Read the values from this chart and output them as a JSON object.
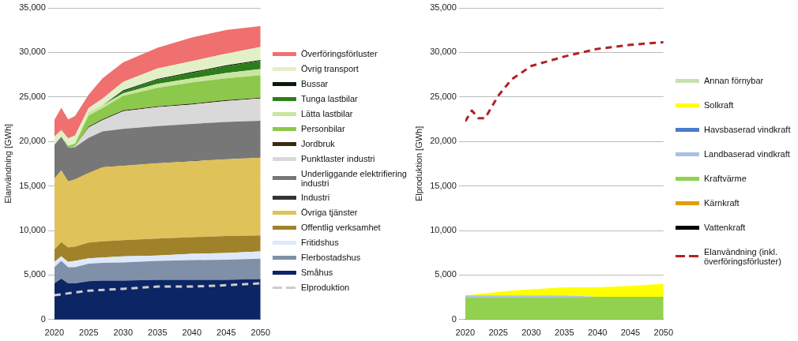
{
  "chart_data": [
    {
      "type": "area",
      "stacked": true,
      "ylabel": "Elanvändning [GWh]",
      "x": [
        2020,
        2021,
        2022,
        2023,
        2025,
        2027,
        2030,
        2035,
        2040,
        2045,
        2050
      ],
      "xlim": [
        2020,
        2050
      ],
      "xticks": [
        2020,
        2025,
        2030,
        2035,
        2040,
        2045,
        2050
      ],
      "ylim": [
        0,
        35000
      ],
      "yticks": [
        {
          "value": 0,
          "label": "0"
        },
        {
          "value": 5000,
          "label": "5,000"
        },
        {
          "value": 10000,
          "label": "10,000"
        },
        {
          "value": 15000,
          "label": "15,000"
        },
        {
          "value": 20000,
          "label": "20,000"
        },
        {
          "value": 25000,
          "label": "25,000"
        },
        {
          "value": 30000,
          "label": "30,000"
        },
        {
          "value": 35000,
          "label": "35,000"
        }
      ],
      "grid": "y",
      "legend": "right",
      "series": [
        {
          "name": "Småhus",
          "color": "#0b2565",
          "values": [
            4060,
            4600,
            4060,
            4060,
            4300,
            4360,
            4360,
            4450,
            4450,
            4450,
            4550
          ]
        },
        {
          "name": "Flerbostadshus",
          "color": "#8090a8",
          "values": [
            1820,
            1980,
            1820,
            1820,
            1970,
            2000,
            2060,
            2130,
            2220,
            2280,
            2270
          ]
        },
        {
          "name": "Fritidshus",
          "color": "#dde9fb",
          "values": [
            600,
            510,
            600,
            700,
            610,
            610,
            670,
            600,
            720,
            750,
            820
          ]
        },
        {
          "name": "Offentlig verksamhet",
          "color": "#a0822a",
          "values": [
            1400,
            1610,
            1610,
            1600,
            1760,
            1820,
            1820,
            1910,
            1850,
            1910,
            1810
          ]
        },
        {
          "name": "Övriga tjänster",
          "color": "#e0c25a",
          "values": [
            7940,
            8030,
            7430,
            7550,
            7840,
            8330,
            8360,
            8460,
            8550,
            8610,
            8730
          ]
        },
        {
          "name": "Industri",
          "color": "#333333",
          "values": [
            50,
            50,
            50,
            50,
            50,
            50,
            50,
            50,
            50,
            50,
            50
          ]
        },
        {
          "name": "Underliggande elektrifiering industri",
          "color": "#777777",
          "values": [
            3740,
            3740,
            3730,
            3580,
            3890,
            3950,
            4100,
            4130,
            4130,
            4130,
            4100
          ]
        },
        {
          "name": "Punktlaster industri",
          "color": "#d9d9d9",
          "values": [
            0,
            0,
            0,
            90,
            1160,
            1270,
            1970,
            2120,
            2180,
            2370,
            2490
          ]
        },
        {
          "name": "Jordbruk",
          "color": "#3a2a10",
          "values": [
            0,
            0,
            0,
            0,
            100,
            100,
            100,
            100,
            100,
            100,
            100
          ]
        },
        {
          "name": "Personbilar",
          "color": "#8cc84b",
          "values": [
            0,
            0,
            220,
            310,
            1240,
            1260,
            1620,
            2070,
            2380,
            2430,
            2520
          ]
        },
        {
          "name": "Lätta lastbilar",
          "color": "#c8e6a0",
          "values": [
            0,
            0,
            0,
            0,
            390,
            300,
            300,
            450,
            450,
            610,
            700
          ]
        },
        {
          "name": "Tunga lastbilar",
          "color": "#2e7d1a",
          "values": [
            0,
            0,
            0,
            0,
            0,
            0,
            220,
            460,
            610,
            750,
            910
          ]
        },
        {
          "name": "Bussar",
          "color": "#0a1a0a",
          "values": [
            0,
            0,
            0,
            0,
            0,
            0,
            100,
            100,
            100,
            100,
            100
          ]
        },
        {
          "name": "Övrig transport",
          "color": "#e2f0c8",
          "values": [
            910,
            750,
            840,
            910,
            460,
            760,
            950,
            1160,
            1220,
            1320,
            1470
          ]
        },
        {
          "name": "Överföringsförluster",
          "color": "#f07070",
          "values": [
            1900,
            2520,
            2120,
            2180,
            1510,
            2270,
            2210,
            2330,
            2670,
            2660,
            2330
          ]
        },
        {
          "name": "Elproduktion",
          "type": "line",
          "line_style": "dashed",
          "color": "#cccccc",
          "x": [
            2020,
            2022,
            2025,
            2030,
            2035,
            2040,
            2045,
            2050
          ],
          "values": [
            2730,
            2940,
            3240,
            3450,
            3700,
            3700,
            3850,
            4060
          ]
        }
      ]
    },
    {
      "type": "area",
      "stacked": true,
      "ylabel": "Elproduktion [GWh]",
      "x": [
        2020,
        2021,
        2022,
        2023,
        2025,
        2027,
        2030,
        2035,
        2040,
        2045,
        2050
      ],
      "xlim": [
        2020,
        2050
      ],
      "xticks": [
        2020,
        2025,
        2030,
        2035,
        2040,
        2045,
        2050
      ],
      "ylim": [
        0,
        35000
      ],
      "yticks": [
        {
          "value": 0,
          "label": "0"
        },
        {
          "value": 5000,
          "label": "5,000"
        },
        {
          "value": 10000,
          "label": "10,000"
        },
        {
          "value": 15000,
          "label": "15,000"
        },
        {
          "value": 20000,
          "label": "20,000"
        },
        {
          "value": 25000,
          "label": "25,000"
        },
        {
          "value": 30000,
          "label": "30,000"
        },
        {
          "value": 35000,
          "label": "35,000"
        }
      ],
      "grid": "y",
      "legend": "right",
      "series": [
        {
          "name": "Vattenkraft",
          "color": "#000000",
          "values": [
            null,
            null,
            null,
            null,
            null,
            null,
            null,
            null,
            null,
            null,
            null
          ]
        },
        {
          "name": "Kärnkraft",
          "color": "#e0a000",
          "values": [
            null,
            null,
            null,
            null,
            null,
            null,
            null,
            null,
            null,
            null,
            null
          ]
        },
        {
          "name": "Kraftvärme",
          "color": "#92d050",
          "values": [
            2500,
            2500,
            2500,
            2500,
            2500,
            2500,
            2500,
            2500,
            2550,
            2550,
            2550
          ]
        },
        {
          "name": "Landbaserad vindkraft",
          "color": "#a9c0e8",
          "values": [
            200,
            200,
            200,
            200,
            200,
            200,
            200,
            200,
            0,
            0,
            0
          ]
        },
        {
          "name": "Havsbaserad vindkraft",
          "color": "#4a7cc9",
          "values": [
            null,
            null,
            null,
            null,
            null,
            null,
            null,
            null,
            null,
            null,
            null
          ]
        },
        {
          "name": "Solkraft",
          "color": "#ffff00",
          "values": [
            0,
            80,
            160,
            240,
            400,
            540,
            700,
            920,
            1070,
            1220,
            1460
          ]
        },
        {
          "name": "Annan förnybar",
          "color": "#c5e0b3",
          "values": [
            null,
            null,
            null,
            null,
            null,
            null,
            null,
            null,
            null,
            null,
            null
          ]
        },
        {
          "name": "Elanvändning (inkl. överföringsförluster)",
          "type": "line",
          "line_style": "dashed",
          "color": "#b22222",
          "values": [
            22250,
            23470,
            22610,
            22610,
            25140,
            26960,
            28480,
            29540,
            30400,
            30850,
            31150
          ]
        }
      ]
    }
  ]
}
